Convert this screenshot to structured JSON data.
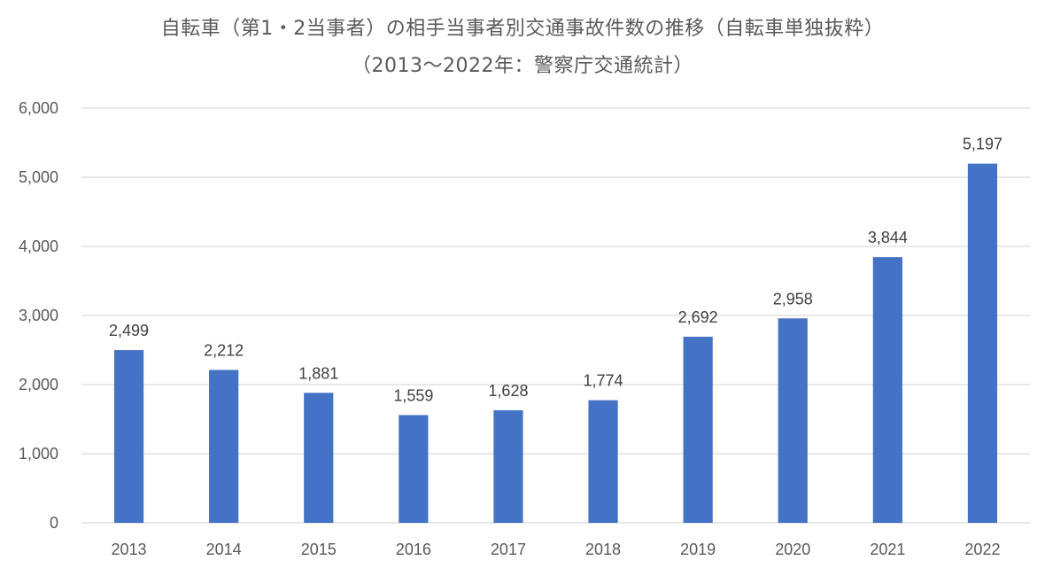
{
  "chart_data": {
    "type": "bar",
    "title": "自転車（第1・2当事者）の相手当事者別交通事故件数の推移（自転車単独抜粋）",
    "subtitle": "（2013～2022年：警察庁交通統計）",
    "categories": [
      "2013",
      "2014",
      "2015",
      "2016",
      "2017",
      "2018",
      "2019",
      "2020",
      "2021",
      "2022"
    ],
    "values": [
      2499,
      2212,
      1881,
      1559,
      1628,
      1774,
      2692,
      2958,
      3844,
      5197
    ],
    "value_labels": [
      "2,499",
      "2,212",
      "1,881",
      "1,559",
      "1,628",
      "1,774",
      "2,692",
      "2,958",
      "3,844",
      "5,197"
    ],
    "yticks": [
      "0",
      "1,000",
      "2,000",
      "3,000",
      "4,000",
      "5,000",
      "6,000"
    ],
    "ylim": [
      0,
      6000
    ],
    "xlabel": "",
    "ylabel": "",
    "grid": true,
    "bar_color": "#4472C4",
    "grid_color": "#D9D9D9"
  }
}
